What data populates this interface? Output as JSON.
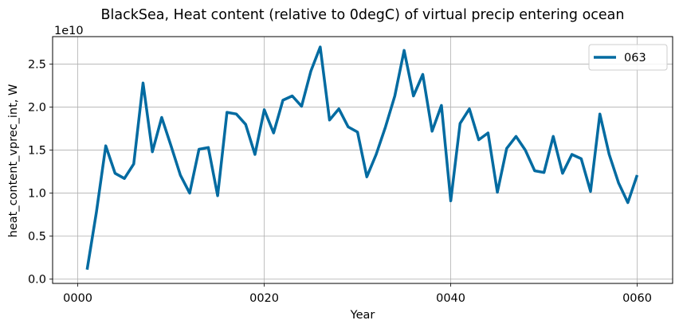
{
  "chart_data": {
    "type": "line",
    "title": "BlackSea, Heat content (relative to 0degC) of virtual precip entering ocean",
    "xlabel": "Year",
    "ylabel": "heat_content_vprec_int, W",
    "y_scale_label": "1e10",
    "xlim": [
      -2.7,
      63.8
    ],
    "ylim": [
      -0.05,
      2.82
    ],
    "x_ticks": [
      0,
      20,
      40,
      60
    ],
    "x_tick_labels": [
      "0000",
      "0020",
      "0040",
      "0060"
    ],
    "y_ticks": [
      0.0,
      0.5,
      1.0,
      1.5,
      2.0,
      2.5
    ],
    "y_tick_labels": [
      "0.0",
      "0.5",
      "1.0",
      "1.5",
      "2.0",
      "2.5"
    ],
    "grid": true,
    "legend_position": "top-right",
    "colors": {
      "series": "#026ba1"
    },
    "series": [
      {
        "name": "063",
        "x": [
          1,
          2,
          3,
          4,
          5,
          6,
          7,
          8,
          9,
          10,
          11,
          12,
          13,
          14,
          15,
          16,
          17,
          18,
          19,
          20,
          21,
          22,
          23,
          24,
          25,
          26,
          27,
          28,
          29,
          30,
          31,
          32,
          33,
          34,
          35,
          36,
          37,
          38,
          39,
          40,
          41,
          42,
          43,
          44,
          45,
          46,
          47,
          48,
          49,
          50,
          51,
          52,
          53,
          54,
          55,
          56,
          57,
          58,
          59,
          60
        ],
        "values": [
          0.11,
          0.78,
          1.55,
          1.23,
          1.17,
          1.34,
          2.28,
          1.48,
          1.88,
          1.55,
          1.21,
          1.0,
          1.51,
          1.53,
          0.97,
          1.94,
          1.92,
          1.8,
          1.45,
          1.97,
          1.7,
          2.08,
          2.13,
          2.01,
          2.42,
          2.7,
          1.85,
          1.98,
          1.77,
          1.71,
          1.19,
          1.45,
          1.77,
          2.13,
          2.66,
          2.13,
          2.38,
          1.72,
          2.02,
          0.91,
          1.81,
          1.98,
          1.62,
          1.7,
          1.01,
          1.52,
          1.66,
          1.5,
          1.26,
          1.24,
          1.66,
          1.23,
          1.45,
          1.4,
          1.02,
          1.92,
          1.45,
          1.12,
          0.89,
          1.21
        ]
      }
    ]
  }
}
